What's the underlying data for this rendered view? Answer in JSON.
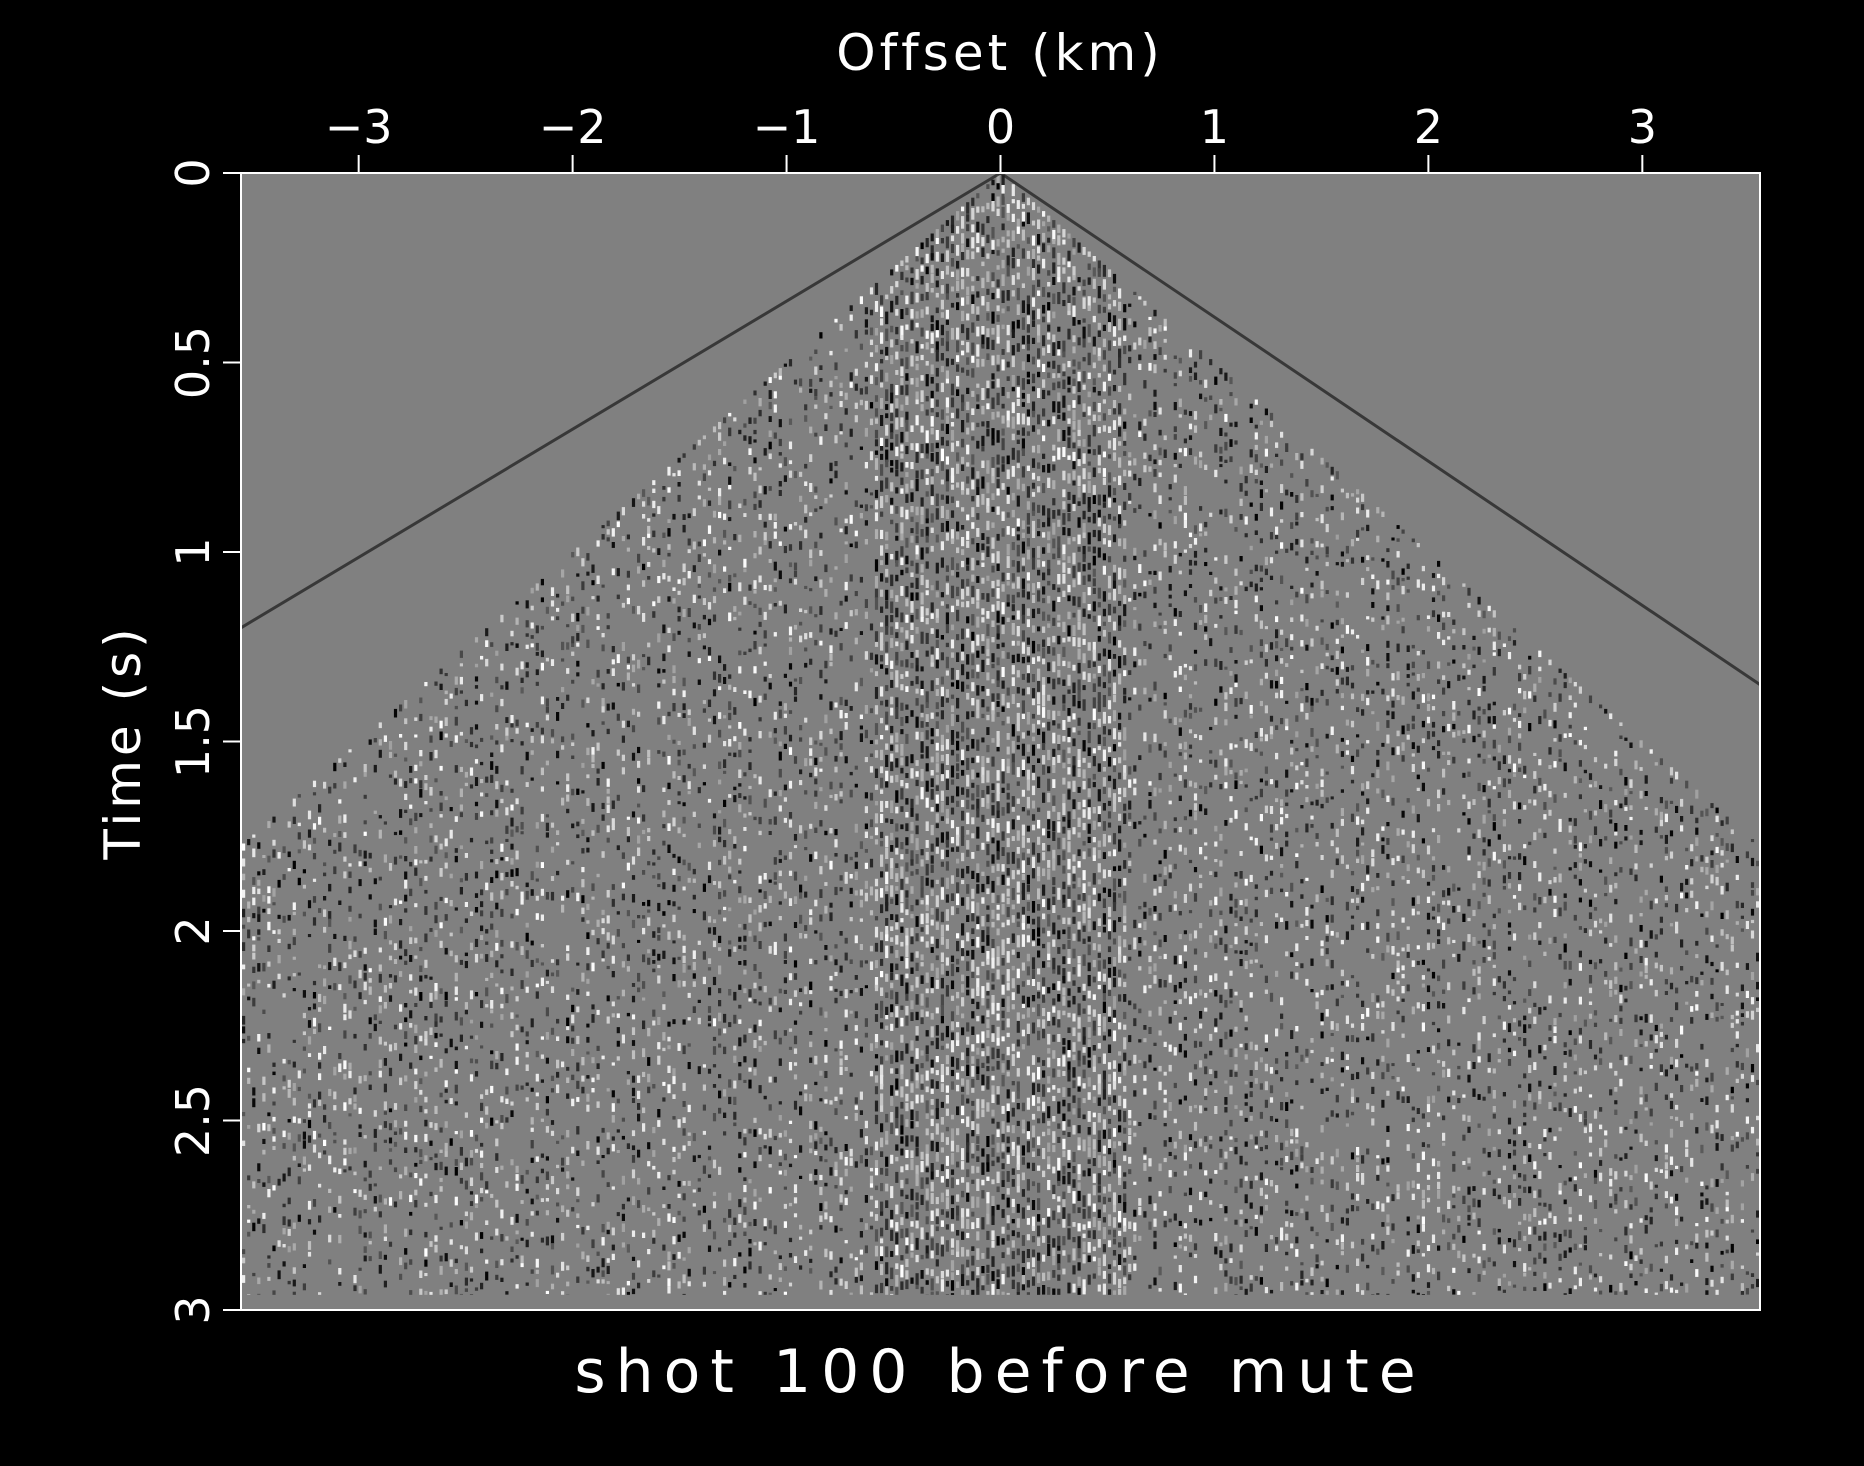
{
  "chart_data": {
    "type": "heatmap",
    "title": "shot 100 before mute",
    "xlabel": "Offset (km)",
    "ylabel": "Time (s)",
    "xlim": [
      -3.55,
      3.55
    ],
    "ylim": [
      0,
      3
    ],
    "x_axis_position": "top",
    "y_axis_inverted": true,
    "x_ticks": [
      -3,
      -2,
      -1,
      0,
      1,
      2,
      3
    ],
    "x_tick_labels": [
      "−3",
      "−2",
      "−1",
      "0",
      "1",
      "2",
      "3"
    ],
    "y_ticks": [
      0,
      0.5,
      1,
      1.5,
      2,
      2.5,
      3
    ],
    "y_tick_labels": [
      "0",
      "0.5",
      "1",
      "1.5",
      "2",
      "2.5",
      "3"
    ],
    "grid": false,
    "colormap": "grayscale",
    "first_break_velocity_km_s": 2.0,
    "direct_wave_left_edge_time_s": 1.2,
    "direct_wave_right_edge_time_s": 1.35,
    "data_end_time_s": 2.96,
    "background_color": "#000000",
    "plot_fill_color": "#808080",
    "text_color": "#ffffff"
  }
}
